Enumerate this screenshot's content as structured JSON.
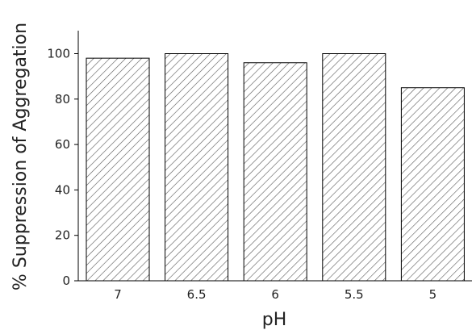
{
  "chart_data": {
    "type": "bar",
    "title": "",
    "xlabel": "pH",
    "ylabel": "% Suppression of Aggregation",
    "categories": [
      "7",
      "6.5",
      "6",
      "5.5",
      "5"
    ],
    "values": [
      98,
      100,
      96,
      100,
      85
    ],
    "ylim": [
      0,
      110
    ],
    "yticks": [
      0,
      20,
      40,
      60,
      80,
      100
    ],
    "grid": false,
    "legend": "none",
    "bar_fill": "hatched",
    "colors": {
      "axis": "#000000",
      "bar_edge": "#000000",
      "hatch": "#555555",
      "background": "#ffffff"
    }
  }
}
